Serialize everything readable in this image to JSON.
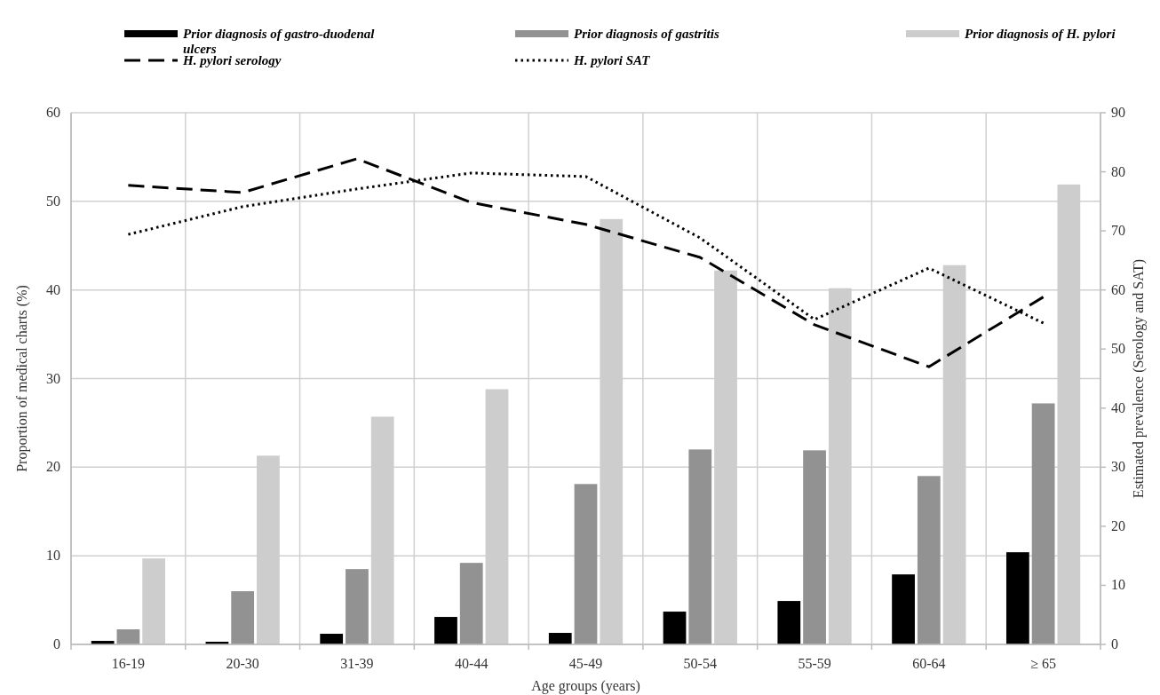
{
  "chart_data": {
    "type": "bar",
    "categories": [
      "16-19",
      "20-30",
      "31-39",
      "40-44",
      "45-49",
      "50-54",
      "55-59",
      "60-64",
      "≥ 65"
    ],
    "series": [
      {
        "name": "Prior diagnosis of gastro-duodenal ulcers",
        "color": "#000000",
        "values": [
          0.4,
          0.3,
          1.2,
          3.1,
          1.3,
          3.7,
          4.9,
          7.9,
          10.4
        ]
      },
      {
        "name": "Prior diagnosis of gastritis",
        "color": "#929292",
        "values": [
          1.7,
          6.0,
          8.5,
          9.2,
          18.1,
          22.0,
          21.9,
          19.0,
          27.2
        ]
      },
      {
        "name": "Prior diagnosis of H. pylori",
        "color": "#cdcdcd",
        "values": [
          9.7,
          21.3,
          25.7,
          28.8,
          48.0,
          42.2,
          40.2,
          42.8,
          51.9
        ]
      },
      {
        "name": "H. pylori serology",
        "type": "line",
        "axis": "y2",
        "color": "#000000",
        "line_style": "dashed",
        "values": [
          77.7,
          76.5,
          82.2,
          74.8,
          71.1,
          65.5,
          54.1,
          47.0,
          58.8
        ]
      },
      {
        "name": "H. pylori SAT",
        "type": "line",
        "axis": "y2",
        "color": "#000000",
        "line_style": "dotted",
        "values": [
          69.4,
          74.1,
          77.1,
          79.8,
          79.2,
          68.8,
          55.0,
          63.7,
          54.4
        ]
      }
    ],
    "xlabel": "Age groups (years)",
    "ylabel": "Proportion of medical charts (%)",
    "y2label": "Estimated prevalence (Serology and SAT)",
    "ylim": [
      0,
      60
    ],
    "yticks": [
      0,
      10,
      20,
      30,
      40,
      50,
      60
    ],
    "y2lim": [
      0,
      90
    ],
    "y2ticks": [
      0,
      10,
      20,
      30,
      40,
      50,
      60,
      70,
      80,
      90
    ],
    "grid": true,
    "legend": "top"
  }
}
